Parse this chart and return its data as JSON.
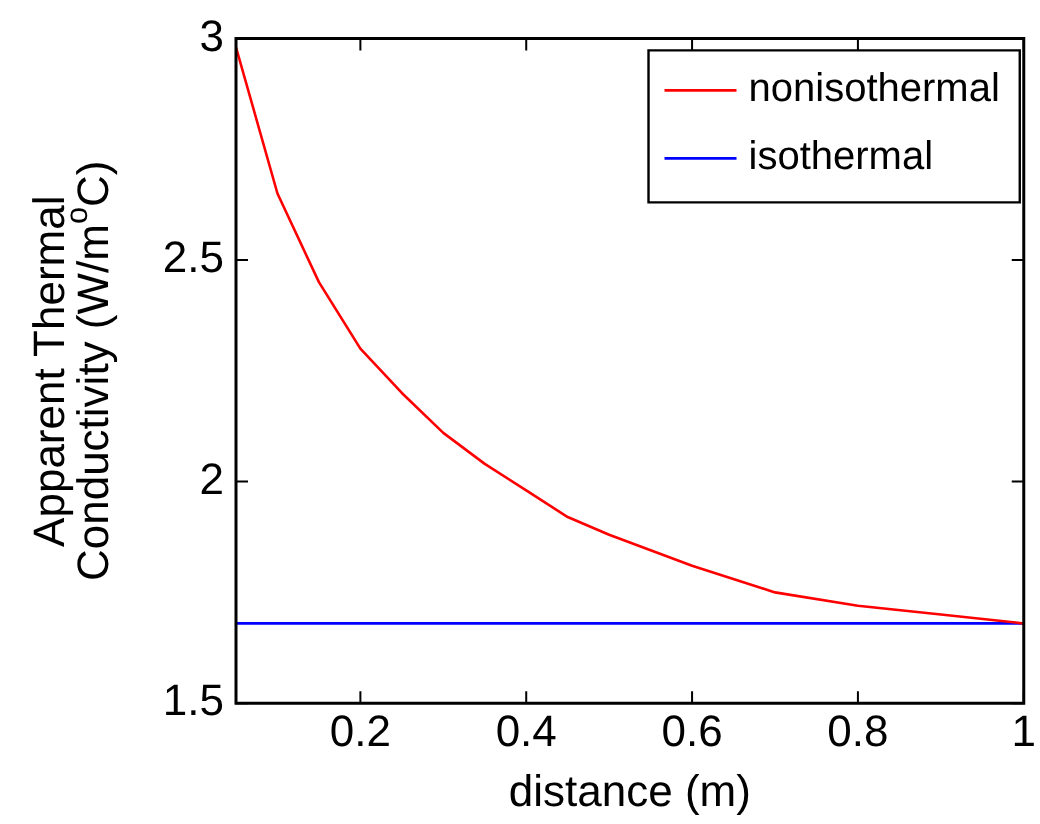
{
  "chart_data": {
    "type": "line",
    "xlabel": "distance (m)",
    "ylabel": "Apparent Thermal\nConductivity (W/m$^{o}$C)",
    "x": [
      0.05,
      0.1,
      0.15,
      0.2,
      0.25,
      0.3,
      0.35,
      0.4,
      0.45,
      0.5,
      0.6,
      0.7,
      0.8,
      0.9,
      1
    ],
    "series": [
      {
        "name": "nonisothermal",
        "color": "#ff0000",
        "values": [
          2.98,
          2.65,
          2.45,
          2.3,
          2.2,
          2.11,
          2.04,
          1.98,
          1.92,
          1.88,
          1.81,
          1.75,
          1.72,
          1.7,
          1.68
        ]
      },
      {
        "name": "isothermal",
        "color": "#0000ff",
        "x": [
          0.05,
          1
        ],
        "values": [
          1.68,
          1.68
        ]
      }
    ],
    "xlim": [
      0.05,
      1
    ],
    "xticks": [
      0.2,
      0.4,
      0.6,
      0.8,
      1
    ],
    "ylim": [
      1.5,
      3
    ],
    "yticks": [
      1.5,
      2,
      2.5,
      3
    ],
    "grid": false,
    "legend": "top right",
    "marker": "none",
    "line_style": "solid"
  }
}
